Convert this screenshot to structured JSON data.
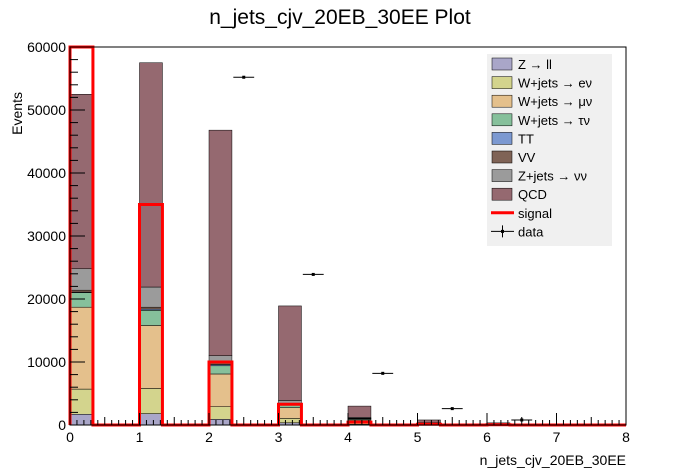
{
  "chart_data": {
    "type": "bar",
    "title": "n_jets_cjv_20EB_30EE Plot",
    "xlabel": "n_jets_cjv_20EB_30EE",
    "ylabel": "Events",
    "xlim": [
      0,
      8
    ],
    "ylim": [
      0,
      60000
    ],
    "x_ticks": [
      "0",
      "1",
      "2",
      "3",
      "4",
      "5",
      "6",
      "7",
      "8"
    ],
    "y_ticks": [
      "0",
      "10000",
      "20000",
      "30000",
      "40000",
      "50000",
      "60000"
    ],
    "bins": [
      0,
      1,
      2,
      3,
      4,
      5,
      6,
      7
    ],
    "stack": [
      {
        "name": "Z → ll",
        "color": "#a9a6c8",
        "values": [
          1700,
          1800,
          900,
          350,
          100,
          40,
          10,
          0
        ]
      },
      {
        "name": "W+jets → eν",
        "color": "#d3d48d",
        "values": [
          4000,
          4000,
          2000,
          700,
          200,
          60,
          20,
          0
        ]
      },
      {
        "name": "W+jets → μν",
        "color": "#e4c08c",
        "values": [
          13000,
          10000,
          5200,
          1700,
          500,
          150,
          40,
          0
        ]
      },
      {
        "name": "W+jets → τν",
        "color": "#86c09b",
        "values": [
          2300,
          2400,
          1300,
          450,
          150,
          40,
          10,
          0
        ]
      },
      {
        "name": "TT",
        "color": "#7c99d1",
        "values": [
          100,
          200,
          200,
          150,
          80,
          30,
          10,
          0
        ]
      },
      {
        "name": "VV",
        "color": "#7f6356",
        "values": [
          300,
          300,
          200,
          100,
          40,
          10,
          5,
          0
        ]
      },
      {
        "name": "Z+jets → νν",
        "color": "#9b9b9b",
        "values": [
          3400,
          3200,
          1200,
          450,
          130,
          40,
          10,
          0
        ]
      },
      {
        "name": "QCD",
        "color": "#956970",
        "values": [
          27700,
          35600,
          35800,
          15000,
          1800,
          430,
          235,
          0
        ]
      }
    ],
    "signal": {
      "name": "signal",
      "color": "#ff0000",
      "values": [
        61000,
        35000,
        10000,
        3300,
        450,
        120,
        40,
        0
      ]
    },
    "data": {
      "name": "data",
      "values": [
        null,
        null,
        55200,
        23900,
        8200,
        2600,
        800,
        null
      ]
    },
    "legend_position": "top-right",
    "grid": false
  }
}
